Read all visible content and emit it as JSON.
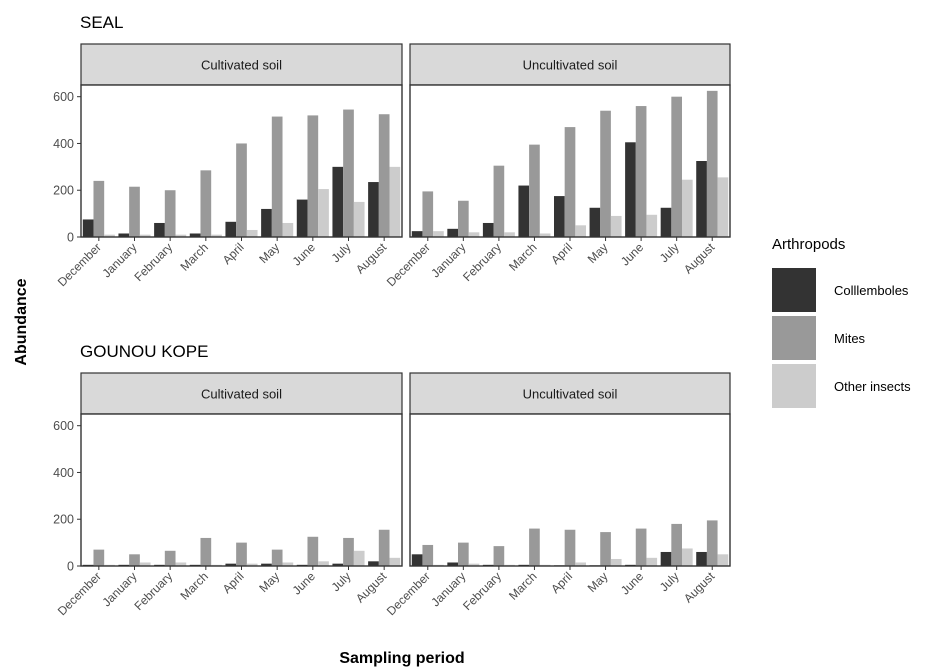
{
  "chart_data": {
    "type": "bar",
    "categories": [
      "December",
      "January",
      "February",
      "March",
      "April",
      "May",
      "June",
      "July",
      "August"
    ],
    "ylim": [
      0,
      650
    ],
    "yticks": [
      0,
      200,
      400,
      600
    ],
    "xlabel": "Sampling period",
    "ylabel": "Abundance",
    "legend": {
      "title": "Arthropods",
      "placement": "right",
      "entries": [
        {
          "name": "Colllemboles",
          "color": "#333333"
        },
        {
          "name": "Mites",
          "color": "#999999"
        },
        {
          "name": "Other insects",
          "color": "#cccccc"
        }
      ]
    },
    "grid": false,
    "panel_strip_color": "#d9d9d9",
    "rows": [
      {
        "title": "SEAL",
        "panels": [
          {
            "strip": "Cultivated soil",
            "series": [
              {
                "name": "Colllemboles",
                "values": [
                  75,
                  15,
                  60,
                  15,
                  65,
                  120,
                  160,
                  300,
                  235
                ]
              },
              {
                "name": "Mites",
                "values": [
                  240,
                  215,
                  200,
                  285,
                  400,
                  515,
                  520,
                  545,
                  525
                ]
              },
              {
                "name": "Other insects",
                "values": [
                  10,
                  10,
                  10,
                  10,
                  30,
                  60,
                  205,
                  150,
                  300
                ]
              }
            ]
          },
          {
            "strip": "Uncultivated soil",
            "series": [
              {
                "name": "Colllemboles",
                "values": [
                  25,
                  35,
                  60,
                  220,
                  175,
                  125,
                  405,
                  125,
                  325
                ]
              },
              {
                "name": "Mites",
                "values": [
                  195,
                  155,
                  305,
                  395,
                  470,
                  540,
                  560,
                  600,
                  625
                ]
              },
              {
                "name": "Other insects",
                "values": [
                  25,
                  20,
                  20,
                  15,
                  50,
                  90,
                  95,
                  245,
                  255
                ]
              }
            ]
          }
        ]
      },
      {
        "title": "GOUNOU KOPE",
        "panels": [
          {
            "strip": "Cultivated soil",
            "series": [
              {
                "name": "Colllemboles",
                "values": [
                  5,
                  5,
                  5,
                  5,
                  10,
                  10,
                  5,
                  10,
                  20
                ]
              },
              {
                "name": "Mites",
                "values": [
                  70,
                  50,
                  65,
                  120,
                  100,
                  70,
                  125,
                  120,
                  155
                ]
              },
              {
                "name": "Other insects",
                "values": [
                  5,
                  15,
                  15,
                  5,
                  10,
                  15,
                  20,
                  65,
                  35
                ]
              }
            ]
          },
          {
            "strip": "Uncultivated soil",
            "series": [
              {
                "name": "Colllemboles",
                "values": [
                  50,
                  15,
                  5,
                  5,
                  3,
                  3,
                  5,
                  60,
                  60
                ]
              },
              {
                "name": "Mites",
                "values": [
                  90,
                  100,
                  85,
                  160,
                  155,
                  145,
                  160,
                  180,
                  195
                ]
              },
              {
                "name": "Other insects",
                "values": [
                  5,
                  10,
                  5,
                  5,
                  15,
                  30,
                  35,
                  75,
                  50
                ]
              }
            ]
          }
        ]
      }
    ]
  }
}
